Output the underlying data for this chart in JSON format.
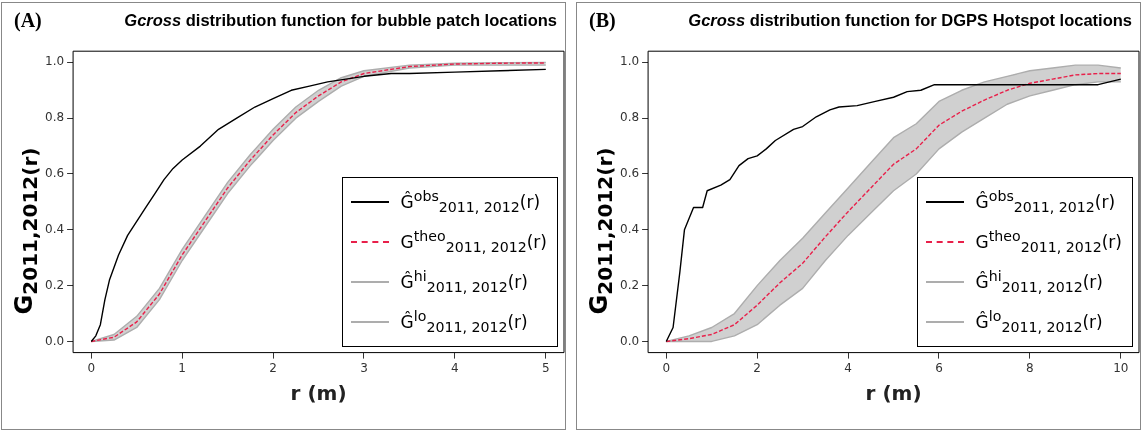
{
  "chart_data": [
    {
      "type": "line",
      "title": "Gcross distribution function for bubble patch locations",
      "annotations": [
        "(A)"
      ],
      "xlabel": "r (m)",
      "ylabel": "G$_{2011,2012(r)}$",
      "xlim": [
        -0.2,
        5.2
      ],
      "ylim": [
        -0.04,
        1.04
      ],
      "xticks": [
        0,
        1,
        2,
        3,
        4,
        5
      ],
      "yticks": [
        {
          "value": 0,
          "label": "0.0"
        },
        {
          "value": 0.2,
          "label": "0.2"
        },
        {
          "value": 0.4,
          "label": "0.4"
        },
        {
          "value": 0.6,
          "label": "0.6"
        },
        {
          "value": 0.8,
          "label": "0.8"
        },
        {
          "value": 1,
          "label": "1.0"
        }
      ],
      "legend": "bottom right",
      "marker": "none",
      "series": [
        {
          "name": "Ĝ$^{obs}$$_{2011, 2012}$(r)",
          "color": "#000000",
          "line_style": "solid",
          "x": [
            0,
            0.05,
            0.1,
            0.15,
            0.2,
            0.3,
            0.4,
            0.5,
            0.6,
            0.7,
            0.8,
            0.9,
            1.0,
            1.2,
            1.4,
            1.6,
            1.8,
            2.0,
            2.2,
            2.4,
            2.6,
            2.8,
            3.0,
            3.3,
            3.5,
            4.0,
            4.5,
            5.0
          ],
          "values": [
            0,
            0.02,
            0.06,
            0.15,
            0.22,
            0.31,
            0.38,
            0.43,
            0.48,
            0.53,
            0.58,
            0.62,
            0.65,
            0.7,
            0.76,
            0.8,
            0.84,
            0.87,
            0.9,
            0.915,
            0.93,
            0.94,
            0.95,
            0.96,
            0.96,
            0.965,
            0.97,
            0.975
          ]
        },
        {
          "name": "G$^{theo}$$_{2011, 2012}$(r)",
          "color": "#e8204a",
          "line_style": "dashed",
          "x": [
            0,
            0.25,
            0.5,
            0.75,
            1,
            1.25,
            1.5,
            1.75,
            2,
            2.25,
            2.5,
            2.75,
            3,
            3.5,
            4,
            4.5,
            5
          ],
          "values": [
            0,
            0.015,
            0.07,
            0.17,
            0.31,
            0.43,
            0.55,
            0.65,
            0.74,
            0.82,
            0.88,
            0.93,
            0.96,
            0.985,
            0.994,
            0.997,
            0.998
          ],
          "upper": [
            0,
            0.025,
            0.09,
            0.19,
            0.33,
            0.45,
            0.57,
            0.67,
            0.76,
            0.84,
            0.9,
            0.945,
            0.97,
            0.99,
            0.997,
            0.999,
            1.0
          ],
          "lower": [
            0,
            0.005,
            0.05,
            0.15,
            0.29,
            0.41,
            0.53,
            0.63,
            0.72,
            0.8,
            0.86,
            0.915,
            0.95,
            0.98,
            0.99,
            0.99,
            0.99
          ]
        },
        {
          "name": "Ĝ$^{hi}$$_{2011, 2012}$(r)",
          "color": "#adadad",
          "line_style": "solid",
          "x": [
            0,
            0.25,
            0.5,
            0.75,
            1,
            1.25,
            1.5,
            1.75,
            2,
            2.25,
            2.5,
            2.75,
            3,
            3.5,
            4,
            4.5,
            5
          ],
          "values": [
            0,
            0.025,
            0.09,
            0.19,
            0.33,
            0.45,
            0.57,
            0.67,
            0.76,
            0.84,
            0.9,
            0.945,
            0.97,
            0.99,
            0.997,
            0.999,
            1.0
          ]
        },
        {
          "name": "Ĝ$^{lo}$$_{2011, 2012}$(r)",
          "color": "#adadad",
          "line_style": "solid",
          "x": [
            0,
            0.25,
            0.5,
            0.75,
            1,
            1.25,
            1.5,
            1.75,
            2,
            2.25,
            2.5,
            2.75,
            3,
            3.5,
            4,
            4.5,
            5
          ],
          "values": [
            0,
            0.005,
            0.05,
            0.15,
            0.29,
            0.41,
            0.53,
            0.63,
            0.72,
            0.8,
            0.86,
            0.915,
            0.95,
            0.98,
            0.99,
            0.99,
            0.99
          ]
        }
      ]
    },
    {
      "type": "line",
      "title": "Gcross distribution function for DGPS Hotspot locations",
      "annotations": [
        "(B)"
      ],
      "xlabel": "r (m)",
      "ylabel": "G$_{2011,2012(r)}$",
      "xlim": [
        -0.4,
        10.4
      ],
      "ylim": [
        -0.04,
        1.04
      ],
      "xticks": [
        0,
        2,
        4,
        6,
        8,
        10
      ],
      "yticks": [
        {
          "value": 0,
          "label": "0.0"
        },
        {
          "value": 0.2,
          "label": "0.2"
        },
        {
          "value": 0.4,
          "label": "0.4"
        },
        {
          "value": 0.6,
          "label": "0.6"
        },
        {
          "value": 0.8,
          "label": "0.8"
        },
        {
          "value": 1,
          "label": "1.0"
        }
      ],
      "legend": "bottom right",
      "marker": "none",
      "series": [
        {
          "name": "Ĝ$^{obs}$$_{2011, 2012}$(r)",
          "color": "#000000",
          "line_style": "solid",
          "x": [
            0,
            0.15,
            0.3,
            0.4,
            0.6,
            0.8,
            0.9,
            1.2,
            1.4,
            1.6,
            1.8,
            2.0,
            2.2,
            2.4,
            2.8,
            3.0,
            3.3,
            3.6,
            3.8,
            4.2,
            4.6,
            5.0,
            5.3,
            5.6,
            5.9,
            6.5,
            9.5,
            10
          ],
          "values": [
            0,
            0.05,
            0.25,
            0.4,
            0.48,
            0.48,
            0.54,
            0.56,
            0.58,
            0.63,
            0.655,
            0.665,
            0.69,
            0.72,
            0.76,
            0.77,
            0.805,
            0.83,
            0.84,
            0.845,
            0.86,
            0.875,
            0.895,
            0.9,
            0.92,
            0.92,
            0.92,
            0.94
          ]
        },
        {
          "name": "G$^{theo}$$_{2011, 2012}$(r)",
          "color": "#e8204a",
          "line_style": "dashed",
          "x": [
            0,
            0.5,
            1,
            1.5,
            2,
            2.5,
            3,
            3.5,
            4,
            4.5,
            5,
            5.5,
            6,
            6.5,
            7,
            7.5,
            8,
            8.5,
            9,
            9.5,
            10
          ],
          "values": [
            0,
            0.01,
            0.025,
            0.06,
            0.13,
            0.21,
            0.28,
            0.375,
            0.465,
            0.55,
            0.635,
            0.69,
            0.775,
            0.825,
            0.865,
            0.9,
            0.925,
            0.94,
            0.955,
            0.96,
            0.96
          ],
          "upper": [
            0,
            0.02,
            0.05,
            0.1,
            0.2,
            0.29,
            0.37,
            0.46,
            0.55,
            0.64,
            0.73,
            0.78,
            0.86,
            0.9,
            0.93,
            0.95,
            0.97,
            0.98,
            0.99,
            0.99,
            0.98
          ],
          "lower": [
            0,
            0,
            0,
            0.02,
            0.06,
            0.13,
            0.19,
            0.29,
            0.38,
            0.46,
            0.54,
            0.6,
            0.69,
            0.75,
            0.8,
            0.85,
            0.88,
            0.9,
            0.92,
            0.93,
            0.93
          ]
        },
        {
          "name": "Ĝ$^{hi}$$_{2011, 2012}$(r)",
          "color": "#adadad",
          "line_style": "solid",
          "x": [
            0,
            0.5,
            1,
            1.5,
            2,
            2.5,
            3,
            3.5,
            4,
            4.5,
            5,
            5.5,
            6,
            6.5,
            7,
            7.5,
            8,
            8.5,
            9,
            9.5,
            10
          ],
          "values": [
            0,
            0.02,
            0.05,
            0.1,
            0.2,
            0.29,
            0.37,
            0.46,
            0.55,
            0.64,
            0.73,
            0.78,
            0.86,
            0.9,
            0.93,
            0.95,
            0.97,
            0.98,
            0.99,
            0.99,
            0.98
          ]
        },
        {
          "name": "Ĝ$^{lo}$$_{2011, 2012}$(r)",
          "color": "#adadad",
          "line_style": "solid",
          "x": [
            0,
            0.5,
            1,
            1.5,
            2,
            2.5,
            3,
            3.5,
            4,
            4.5,
            5,
            5.5,
            6,
            6.5,
            7,
            7.5,
            8,
            8.5,
            9,
            9.5,
            10
          ],
          "values": [
            0,
            0,
            0,
            0.02,
            0.06,
            0.13,
            0.19,
            0.29,
            0.38,
            0.46,
            0.54,
            0.6,
            0.69,
            0.75,
            0.8,
            0.85,
            0.88,
            0.9,
            0.92,
            0.93,
            0.93
          ]
        }
      ]
    }
  ]
}
